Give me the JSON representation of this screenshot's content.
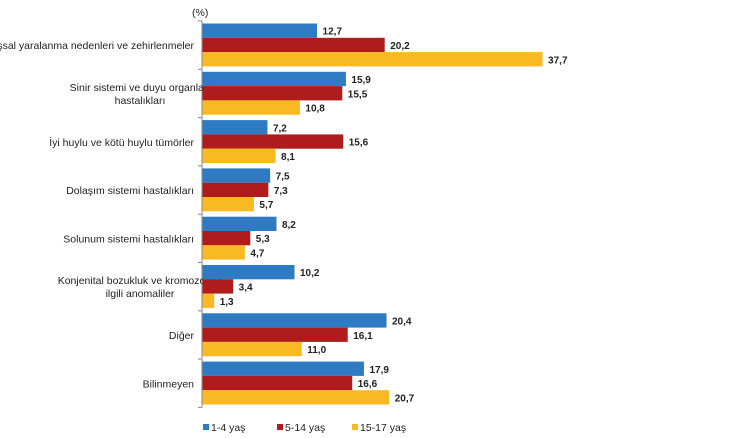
{
  "chart_data": {
    "type": "bar",
    "orientation": "horizontal",
    "unit_label": "(%)",
    "categories": [
      [
        "Dışsal yaralanma nedenleri ve zehirlenmeler"
      ],
      [
        "Sinir sistemi ve duyu organları",
        "hastalıkları"
      ],
      [
        "İyi huylu ve kötü huylu tümörler"
      ],
      [
        "Dolaşım sistemi hastalıkları"
      ],
      [
        "Solunum sistemi hastalıkları"
      ],
      [
        "Konjenital bozukluk ve kromozomla",
        "ilgili anomaliler"
      ],
      [
        "Diğer"
      ],
      [
        "Bilinmeyen"
      ]
    ],
    "series": [
      {
        "name": "1-4 yaş",
        "color": "#2e7bc4",
        "values": [
          12.7,
          15.9,
          7.2,
          7.5,
          8.2,
          10.2,
          20.4,
          17.9
        ],
        "labels": [
          "12,7",
          "15,9",
          "7,2",
          "7,5",
          "8,2",
          "10,2",
          "20,4",
          "17,9"
        ]
      },
      {
        "name": "5-14 yaş",
        "color": "#b01c1c",
        "values": [
          20.2,
          15.5,
          15.6,
          7.3,
          5.3,
          3.4,
          16.1,
          16.6
        ],
        "labels": [
          "20,2",
          "15,5",
          "15,6",
          "7,3",
          "5,3",
          "3,4",
          "16,1",
          "16,6"
        ]
      },
      {
        "name": "15-17 yaş",
        "color": "#f9b923",
        "values": [
          37.7,
          10.8,
          8.1,
          5.7,
          4.7,
          1.3,
          11.0,
          20.7
        ],
        "labels": [
          "37,7",
          "10,8",
          "8,1",
          "5,7",
          "4,7",
          "1,3",
          "11,0",
          "20,7"
        ]
      }
    ],
    "xlim": [
      0,
      40
    ],
    "grid": false,
    "legend": "bottom"
  }
}
